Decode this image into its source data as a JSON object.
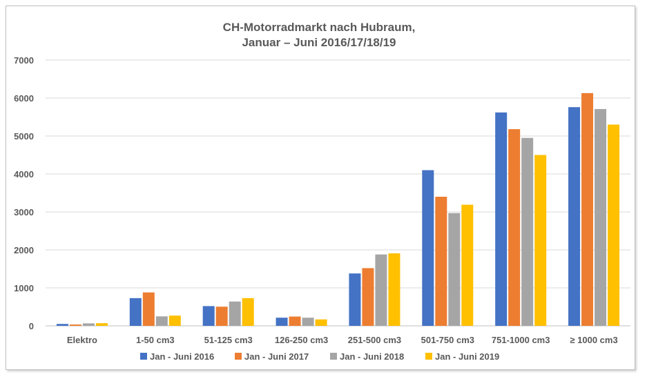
{
  "chart_data": {
    "type": "bar",
    "title_lines": [
      "CH-Motorradmarkt nach Hubraum,",
      "Januar – Juni 2016/17/18/19"
    ],
    "xlabel": "",
    "ylabel": "",
    "categories": [
      "Elektro",
      "1-50 cm3",
      "51-125 cm3",
      "126-250 cm3",
      "251-500 cm3",
      "501-750 cm3",
      "751-1000 cm3",
      "≥ 1000 cm3"
    ],
    "series": [
      {
        "name": "Jan - Juni 2016",
        "color": "#4472C4",
        "values": [
          50,
          730,
          520,
          215,
          1380,
          4100,
          5620,
          5760
        ]
      },
      {
        "name": "Jan - Juni 2017",
        "color": "#ED7D31",
        "values": [
          35,
          880,
          505,
          245,
          1520,
          3400,
          5180,
          6130
        ]
      },
      {
        "name": "Jan - Juni 2018",
        "color": "#A5A5A5",
        "values": [
          65,
          250,
          640,
          215,
          1880,
          2970,
          4950,
          5710
        ]
      },
      {
        "name": "Jan - Juni 2019",
        "color": "#FFC000",
        "values": [
          70,
          270,
          730,
          170,
          1910,
          3190,
          4500,
          5300
        ]
      }
    ],
    "ylim": [
      0,
      7000
    ],
    "yticks": [
      "0",
      "1000",
      "2000",
      "3000",
      "4000",
      "5000",
      "6000",
      "7000"
    ],
    "grid": true,
    "legend_position": "bottom"
  }
}
